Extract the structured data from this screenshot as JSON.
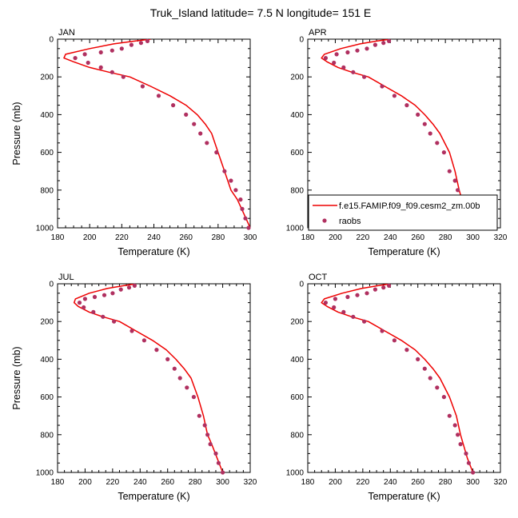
{
  "chart_data": {
    "type": "line",
    "title": "Truk_Island  latitude= 7.5 N longitude= 151 E",
    "xlabel": "Temperature (K)",
    "ylabel": "Pressure (mb)",
    "y_reversed": true,
    "grid": false,
    "series_names": [
      "f.e15.FAMIP.f09_f09.cesm2_zm.00b",
      "raobs"
    ],
    "colors": {
      "model": "#ee0000",
      "raobs": "#b03060"
    },
    "panels": [
      {
        "month": "JAN",
        "xlim": [
          180,
          300
        ],
        "ylim": [
          1000,
          0
        ],
        "xticks": [
          180,
          200,
          220,
          240,
          260,
          280,
          300
        ],
        "yticks": [
          0,
          200,
          400,
          600,
          800,
          1000
        ],
        "legend": false,
        "model": {
          "x": [
            238,
            228,
            215,
            200,
            185,
            184,
            190,
            200,
            212,
            225,
            238,
            250,
            260,
            267,
            272,
            276,
            280,
            284,
            288,
            292,
            296,
            300
          ],
          "y": [
            0,
            10,
            25,
            50,
            80,
            100,
            120,
            150,
            175,
            200,
            250,
            300,
            350,
            400,
            450,
            500,
            600,
            700,
            800,
            850,
            925,
            1000
          ]
        },
        "raobs": {
          "x": [
            236,
            232,
            226,
            220,
            214,
            207,
            197,
            191,
            199,
            207,
            214,
            221,
            233,
            243,
            252,
            260,
            265,
            269,
            273,
            279,
            284,
            288,
            291,
            294,
            295,
            297,
            299
          ],
          "y": [
            10,
            20,
            30,
            50,
            60,
            70,
            80,
            100,
            125,
            150,
            175,
            200,
            250,
            300,
            350,
            400,
            450,
            500,
            550,
            600,
            700,
            750,
            800,
            850,
            900,
            950,
            1000
          ]
        }
      },
      {
        "month": "APR",
        "xlim": [
          180,
          320
        ],
        "ylim": [
          1000,
          0
        ],
        "xticks": [
          180,
          200,
          220,
          240,
          260,
          280,
          300,
          320
        ],
        "yticks": [
          0,
          200,
          400,
          600,
          800,
          1000
        ],
        "legend": true,
        "model": {
          "x": [
            240,
            230,
            218,
            204,
            192,
            190,
            194,
            202,
            212,
            224,
            236,
            248,
            258,
            265,
            271,
            276,
            283,
            287,
            290,
            292,
            295,
            299
          ],
          "y": [
            0,
            10,
            25,
            50,
            80,
            100,
            120,
            150,
            175,
            200,
            250,
            300,
            350,
            400,
            450,
            500,
            600,
            700,
            800,
            850,
            925,
            1000
          ]
        },
        "raobs": {
          "x": [
            239,
            235,
            229,
            223,
            216,
            209,
            201,
            193,
            199,
            206,
            213,
            221,
            234,
            243,
            252,
            260,
            265,
            269,
            274,
            279,
            283,
            287,
            289,
            291,
            295,
            297,
            300
          ],
          "y": [
            10,
            20,
            30,
            50,
            60,
            70,
            80,
            100,
            125,
            150,
            175,
            200,
            250,
            300,
            350,
            400,
            450,
            500,
            550,
            600,
            700,
            750,
            800,
            850,
            900,
            950,
            1000
          ]
        }
      },
      {
        "month": "JUL",
        "xlim": [
          180,
          320
        ],
        "ylim": [
          1000,
          0
        ],
        "xticks": [
          180,
          200,
          220,
          240,
          260,
          280,
          300,
          320
        ],
        "yticks": [
          0,
          200,
          400,
          600,
          800,
          1000
        ],
        "legend": false,
        "model": {
          "x": [
            237,
            228,
            216,
            203,
            193,
            192,
            195,
            203,
            213,
            225,
            237,
            249,
            259,
            266,
            272,
            277,
            282,
            286,
            289,
            292,
            296,
            300
          ],
          "y": [
            0,
            10,
            25,
            50,
            80,
            100,
            120,
            150,
            175,
            200,
            250,
            300,
            350,
            400,
            450,
            500,
            600,
            700,
            800,
            850,
            925,
            1000
          ]
        },
        "raobs": {
          "x": [
            236,
            232,
            226,
            220,
            214,
            207,
            200,
            196,
            199,
            206,
            213,
            221,
            234,
            243,
            252,
            260,
            265,
            269,
            274,
            279,
            283,
            287,
            289,
            291,
            295,
            297,
            300
          ],
          "y": [
            10,
            20,
            30,
            50,
            60,
            70,
            80,
            100,
            125,
            150,
            175,
            200,
            250,
            300,
            350,
            400,
            450,
            500,
            550,
            600,
            700,
            750,
            800,
            850,
            900,
            950,
            1000
          ]
        }
      },
      {
        "month": "OCT",
        "xlim": [
          180,
          320
        ],
        "ylim": [
          1000,
          0
        ],
        "xticks": [
          180,
          200,
          220,
          240,
          260,
          280,
          300,
          320
        ],
        "yticks": [
          0,
          200,
          400,
          600,
          800,
          1000
        ],
        "legend": false,
        "model": {
          "x": [
            240,
            231,
            219,
            205,
            192,
            190,
            194,
            202,
            212,
            224,
            236,
            248,
            258,
            265,
            271,
            276,
            283,
            288,
            291,
            293,
            296,
            300
          ],
          "y": [
            0,
            10,
            25,
            50,
            80,
            100,
            120,
            150,
            175,
            200,
            250,
            300,
            350,
            400,
            450,
            500,
            600,
            700,
            800,
            850,
            925,
            1000
          ]
        },
        "raobs": {
          "x": [
            239,
            235,
            229,
            223,
            216,
            209,
            200,
            193,
            199,
            206,
            213,
            221,
            234,
            243,
            252,
            260,
            265,
            269,
            274,
            279,
            283,
            287,
            289,
            291,
            295,
            297,
            300
          ],
          "y": [
            10,
            20,
            30,
            50,
            60,
            70,
            80,
            100,
            125,
            150,
            175,
            200,
            250,
            300,
            350,
            400,
            450,
            500,
            550,
            600,
            700,
            750,
            800,
            850,
            900,
            950,
            1000
          ]
        }
      }
    ]
  }
}
